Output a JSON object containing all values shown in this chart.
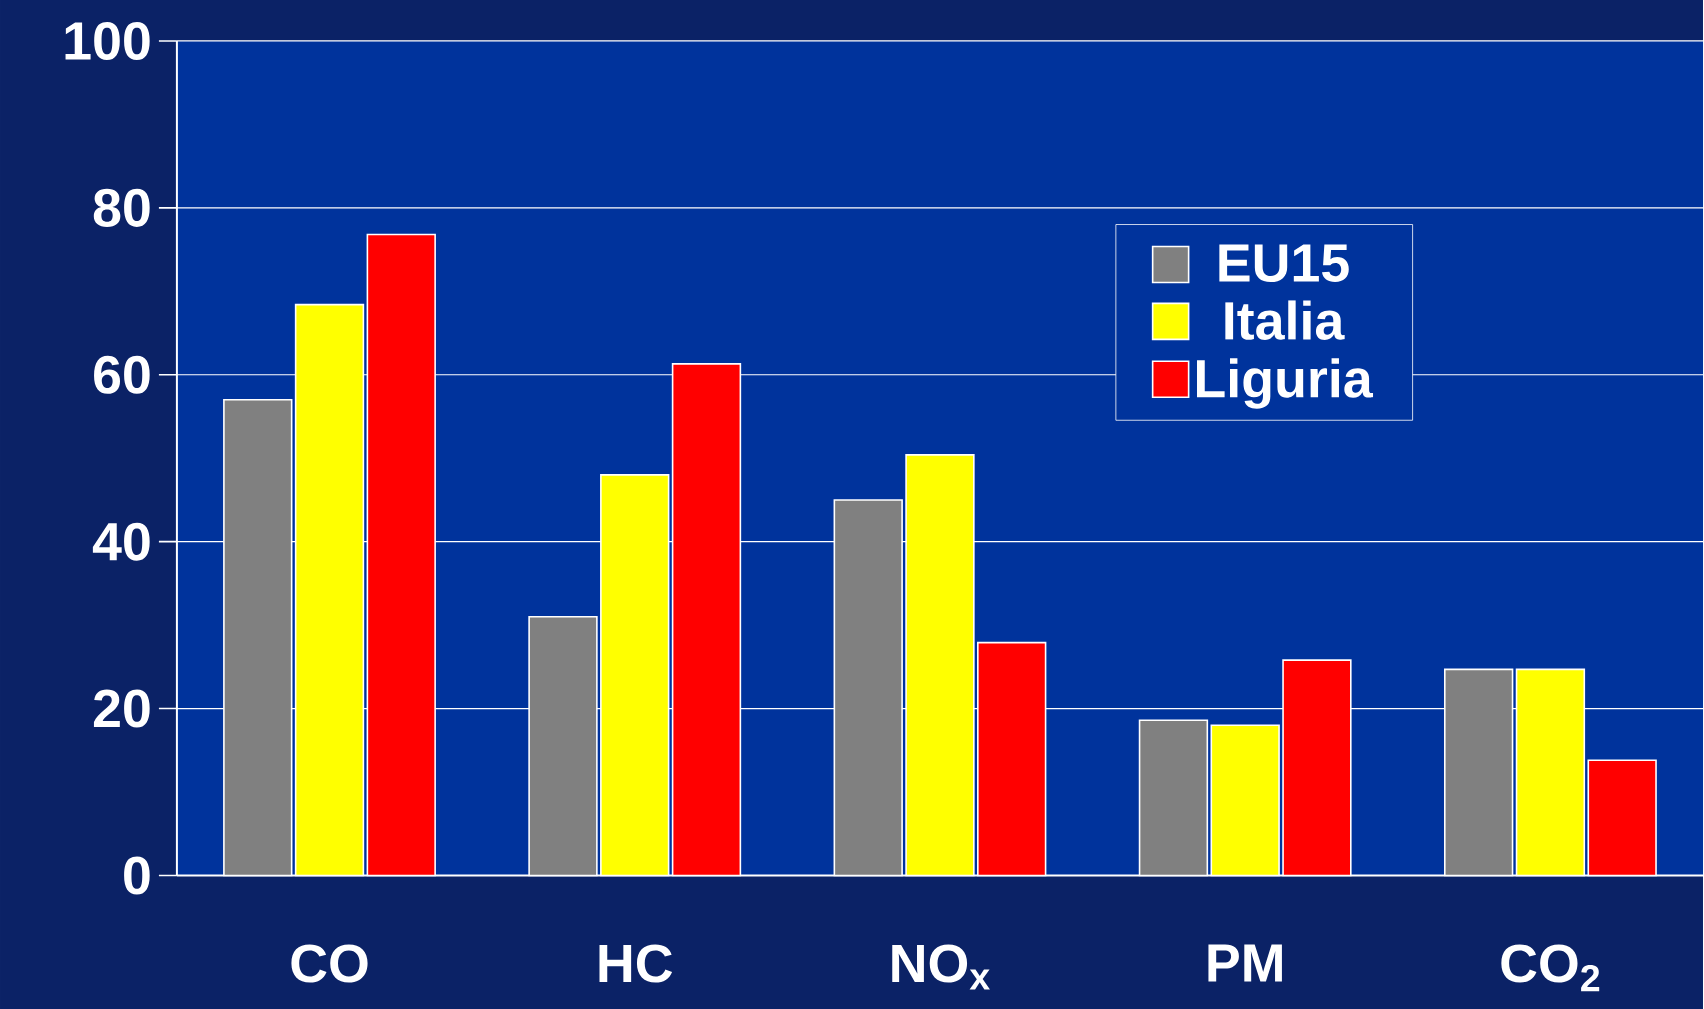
{
  "chart_data": {
    "type": "bar",
    "categories": [
      "CO",
      "HC",
      "NO$_{x}$",
      "PM",
      "CO$_{2}$"
    ],
    "series": [
      {
        "name": "EU15",
        "color": "#808080",
        "values": [
          57,
          31,
          45,
          18.6,
          24.7
        ]
      },
      {
        "name": "Italia",
        "color": "#ffff00",
        "values": [
          68.4,
          48,
          50.4,
          18,
          24.7
        ]
      },
      {
        "name": "Liguria",
        "color": "#ff0000",
        "values": [
          76.8,
          61.3,
          27.9,
          25.8,
          13.8
        ]
      }
    ],
    "ylim": [
      0,
      100
    ],
    "yticks": [
      0,
      20,
      40,
      60,
      80,
      100
    ],
    "grid": "y",
    "legend": "top right"
  }
}
